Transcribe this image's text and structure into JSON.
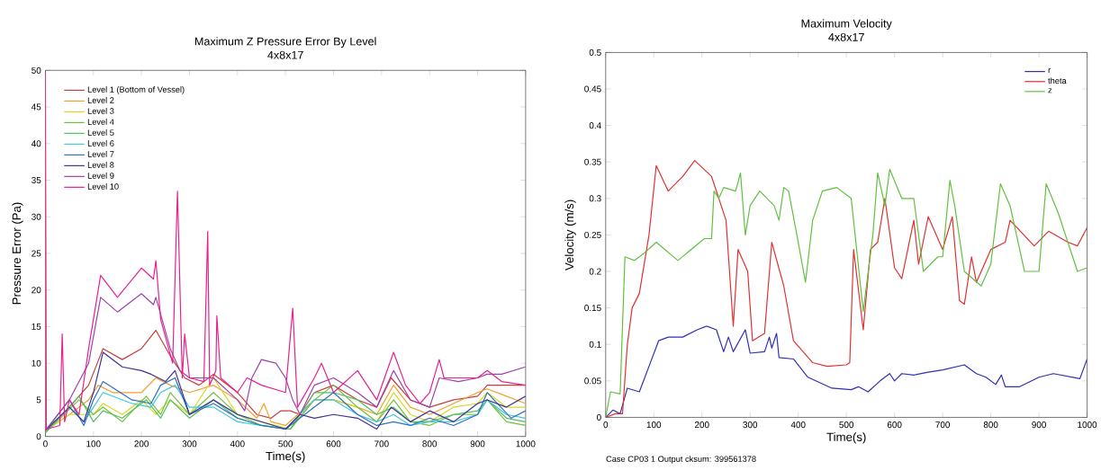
{
  "chart_data": [
    {
      "type": "line",
      "title": "Maximum Z Pressure Error By Level",
      "subtitle": "4x8x17",
      "xlabel": "Time(s)",
      "ylabel": "Pressure Error (Pa)",
      "xlim": [
        0,
        1000
      ],
      "ylim": [
        0,
        50
      ],
      "xticks": [
        0,
        100,
        200,
        300,
        400,
        500,
        600,
        700,
        800,
        900,
        1000
      ],
      "yticks": [
        0,
        5,
        10,
        15,
        20,
        25,
        30,
        35,
        40,
        45,
        50
      ],
      "legend": "top left",
      "series": [
        {
          "name": "Level 1 (Bottom of Vessel)",
          "color": "#c83c3c",
          "x": [
            0,
            50,
            90,
            120,
            160,
            200,
            230,
            260,
            290,
            320,
            350,
            400,
            440,
            470,
            490,
            510,
            530,
            560,
            600,
            650,
            690,
            720,
            760,
            800,
            850,
            900,
            920,
            960,
            1000
          ],
          "values": [
            0.8,
            4,
            7,
            12,
            10.5,
            12,
            14.5,
            11,
            8,
            7,
            8.5,
            6,
            3,
            2.5,
            3.5,
            3.5,
            3,
            6,
            7,
            5,
            4,
            8,
            5,
            4,
            5,
            5.5,
            7,
            7,
            7
          ]
        },
        {
          "name": "Level 2",
          "color": "#f0a030",
          "x": [
            0,
            50,
            90,
            110,
            140,
            200,
            230,
            260,
            300,
            350,
            400,
            440,
            455,
            470,
            500,
            560,
            600,
            650,
            690,
            725,
            760,
            800,
            850,
            900,
            920,
            960,
            1000
          ],
          "values": [
            0.8,
            3,
            5,
            7,
            6,
            6,
            8,
            7,
            6,
            7,
            5,
            2.5,
            4.5,
            2,
            1.5,
            5,
            5,
            4,
            3,
            7,
            4,
            3,
            4.5,
            6,
            6.5,
            5.5,
            4.5
          ]
        },
        {
          "name": "Level 3",
          "color": "#d8d820",
          "x": [
            0,
            50,
            100,
            120,
            160,
            200,
            230,
            260,
            300,
            350,
            400,
            450,
            510,
            560,
            600,
            650,
            690,
            725,
            760,
            800,
            850,
            900,
            920,
            960,
            1000
          ],
          "values": [
            0.8,
            3,
            3,
            4.5,
            3,
            5,
            3,
            5,
            3,
            8,
            3,
            2,
            1,
            5,
            5,
            4,
            2,
            6,
            3,
            2,
            4,
            4.5,
            6,
            4,
            4
          ]
        },
        {
          "name": "Level 4",
          "color": "#70c040",
          "x": [
            0,
            70,
            100,
            120,
            160,
            210,
            240,
            260,
            300,
            350,
            400,
            450,
            510,
            560,
            600,
            650,
            690,
            725,
            760,
            800,
            850,
            900,
            920,
            960,
            1000
          ],
          "values": [
            0.5,
            5,
            3,
            4,
            2,
            5.5,
            3,
            6,
            3,
            6,
            3,
            1.5,
            1,
            5,
            7,
            4,
            2,
            5,
            2,
            1.5,
            3,
            3,
            5,
            2,
            1.5
          ]
        },
        {
          "name": "Level 5",
          "color": "#50c060",
          "x": [
            0,
            70,
            100,
            120,
            160,
            210,
            240,
            260,
            300,
            350,
            400,
            450,
            510,
            560,
            600,
            650,
            690,
            725,
            760,
            800,
            850,
            900,
            920,
            960,
            1000
          ],
          "values": [
            0.5,
            5.5,
            2,
            3.5,
            2.5,
            5,
            2.5,
            5,
            2.5,
            5,
            2.5,
            1.5,
            1,
            6,
            6,
            5,
            3,
            4,
            2,
            2,
            3,
            3.5,
            5,
            2.5,
            2
          ]
        },
        {
          "name": "Level 6",
          "color": "#40c8e0",
          "x": [
            0,
            50,
            80,
            100,
            120,
            180,
            220,
            240,
            270,
            300,
            350,
            400,
            450,
            500,
            560,
            600,
            650,
            690,
            725,
            760,
            800,
            850,
            900,
            920,
            960,
            1000
          ],
          "values": [
            0.8,
            4,
            2,
            4,
            6,
            4.5,
            4,
            6,
            7,
            4,
            4,
            2,
            1.5,
            1,
            5,
            5,
            3,
            2,
            3,
            1.5,
            2,
            2,
            3,
            5,
            3,
            2.5
          ]
        },
        {
          "name": "Level 7",
          "color": "#3070c0",
          "x": [
            0,
            50,
            80,
            100,
            120,
            180,
            220,
            240,
            270,
            300,
            350,
            400,
            450,
            500,
            560,
            600,
            650,
            690,
            725,
            760,
            800,
            850,
            900,
            920,
            970,
            1000
          ],
          "values": [
            0.8,
            5,
            1.5,
            5,
            7.5,
            5,
            4.5,
            7,
            8,
            3,
            4.5,
            2.5,
            1.5,
            1,
            4,
            6,
            3,
            1.5,
            2,
            1.5,
            2.5,
            1.5,
            3,
            6,
            2.5,
            3.5
          ]
        },
        {
          "name": "Level 8",
          "color": "#403090",
          "x": [
            0,
            50,
            80,
            100,
            120,
            160,
            200,
            220,
            250,
            270,
            300,
            350,
            400,
            450,
            500,
            530,
            560,
            600,
            650,
            690,
            720,
            760,
            800,
            850,
            900,
            920,
            960,
            1000
          ],
          "values": [
            0.8,
            4,
            2,
            6,
            11.5,
            9.5,
            9,
            8.5,
            7.5,
            9,
            3,
            5,
            3,
            2,
            1,
            3,
            2.5,
            3,
            2.5,
            1,
            4,
            2,
            3.5,
            2,
            4.5,
            5,
            4,
            5.5
          ]
        },
        {
          "name": "Level 9",
          "color": "#a040b0",
          "x": [
            0,
            50,
            90,
            115,
            150,
            200,
            225,
            230,
            260,
            280,
            300,
            350,
            400,
            415,
            430,
            450,
            480,
            500,
            515,
            530,
            560,
            600,
            650,
            690,
            725,
            760,
            800,
            820,
            860,
            900,
            920,
            950,
            1000
          ],
          "values": [
            0.8,
            5,
            10,
            19,
            17,
            19.5,
            18,
            19,
            12,
            9,
            8,
            8,
            5,
            3.5,
            8,
            10.5,
            10,
            8,
            5,
            3,
            7,
            8,
            6,
            4,
            9,
            5,
            4,
            8,
            7.5,
            8,
            8.5,
            8.5,
            9.5
          ]
        },
        {
          "name": "Level 10",
          "color": "#e8208c",
          "x": [
            0,
            2,
            30,
            35,
            40,
            50,
            70,
            90,
            115,
            150,
            200,
            225,
            230,
            240,
            265,
            275,
            285,
            290,
            300,
            330,
            338,
            342,
            355,
            357,
            365,
            400,
            420,
            450,
            500,
            515,
            525,
            560,
            575,
            600,
            650,
            690,
            725,
            750,
            780,
            800,
            820,
            830,
            900,
            920,
            950,
            1000
          ],
          "values": [
            50,
            1,
            1.5,
            14,
            2,
            5,
            3,
            12,
            22,
            19,
            23,
            21.5,
            24,
            16,
            10,
            33.5,
            8,
            14,
            8,
            7.5,
            28,
            7,
            9,
            16.5,
            8,
            6,
            8,
            7,
            6,
            17.5,
            4,
            8,
            10,
            6,
            9,
            5,
            11.5,
            7,
            4.5,
            6,
            10.5,
            8,
            8,
            9,
            7.5,
            7
          ]
        }
      ]
    },
    {
      "type": "line",
      "title": "Maximum Velocity",
      "subtitle": "4x8x17",
      "xlabel": "Time(s)",
      "ylabel": "Velocity (m/s)",
      "xlim": [
        0,
        1000
      ],
      "ylim": [
        0,
        0.5
      ],
      "xticks": [
        0,
        100,
        200,
        300,
        400,
        500,
        600,
        700,
        800,
        900,
        1000
      ],
      "yticks": [
        0,
        0.05,
        0.1,
        0.15,
        0.2,
        0.25,
        0.3,
        0.35,
        0.4,
        0.45,
        0.5
      ],
      "legend": "top right",
      "annotations": [
        "Case CP03 1 Output cksum: 399561378"
      ],
      "series": [
        {
          "name": "r",
          "color": "#3030b0",
          "x": [
            0,
            15,
            30,
            45,
            70,
            90,
            110,
            130,
            160,
            190,
            210,
            230,
            245,
            255,
            265,
            290,
            300,
            330,
            340,
            345,
            355,
            360,
            390,
            420,
            470,
            510,
            525,
            545,
            570,
            590,
            600,
            615,
            640,
            670,
            700,
            745,
            770,
            790,
            810,
            822,
            830,
            860,
            900,
            930,
            985,
            1000
          ],
          "values": [
            0,
            0.01,
            0.005,
            0.04,
            0.035,
            0.07,
            0.105,
            0.11,
            0.11,
            0.12,
            0.125,
            0.12,
            0.09,
            0.11,
            0.09,
            0.12,
            0.088,
            0.09,
            0.11,
            0.095,
            0.115,
            0.082,
            0.08,
            0.055,
            0.04,
            0.038,
            0.042,
            0.035,
            0.05,
            0.06,
            0.05,
            0.06,
            0.058,
            0.062,
            0.065,
            0.072,
            0.06,
            0.055,
            0.045,
            0.058,
            0.042,
            0.042,
            0.055,
            0.06,
            0.053,
            0.08
          ]
        },
        {
          "name": "theta",
          "color": "#e03030",
          "x": [
            0,
            20,
            35,
            45,
            55,
            70,
            90,
            105,
            130,
            160,
            185,
            220,
            250,
            265,
            275,
            295,
            305,
            330,
            345,
            370,
            390,
            430,
            460,
            500,
            507,
            515,
            535,
            550,
            565,
            580,
            600,
            615,
            640,
            650,
            670,
            700,
            720,
            735,
            745,
            760,
            770,
            800,
            830,
            840,
            890,
            920,
            960,
            980,
            1000
          ],
          "values": [
            0,
            0.005,
            0.005,
            0.1,
            0.15,
            0.17,
            0.25,
            0.345,
            0.31,
            0.33,
            0.352,
            0.33,
            0.27,
            0.125,
            0.23,
            0.2,
            0.105,
            0.115,
            0.24,
            0.18,
            0.105,
            0.075,
            0.07,
            0.072,
            0.075,
            0.23,
            0.12,
            0.23,
            0.24,
            0.3,
            0.205,
            0.19,
            0.27,
            0.21,
            0.275,
            0.23,
            0.275,
            0.16,
            0.155,
            0.22,
            0.185,
            0.23,
            0.24,
            0.27,
            0.235,
            0.255,
            0.24,
            0.235,
            0.26
          ]
        },
        {
          "name": "z",
          "color": "#60c040",
          "x": [
            0,
            10,
            30,
            40,
            60,
            80,
            105,
            150,
            205,
            220,
            225,
            235,
            245,
            270,
            280,
            290,
            300,
            320,
            350,
            360,
            370,
            380,
            400,
            415,
            430,
            450,
            480,
            510,
            535,
            555,
            565,
            580,
            590,
            615,
            640,
            660,
            690,
            700,
            715,
            725,
            745,
            780,
            800,
            820,
            840,
            870,
            900,
            915,
            940,
            980,
            1000
          ],
          "values": [
            0,
            0.035,
            0.032,
            0.22,
            0.215,
            0.225,
            0.24,
            0.215,
            0.245,
            0.245,
            0.31,
            0.3,
            0.315,
            0.31,
            0.335,
            0.25,
            0.29,
            0.31,
            0.29,
            0.27,
            0.315,
            0.31,
            0.24,
            0.185,
            0.27,
            0.31,
            0.315,
            0.3,
            0.145,
            0.25,
            0.335,
            0.29,
            0.34,
            0.3,
            0.3,
            0.2,
            0.22,
            0.22,
            0.325,
            0.29,
            0.2,
            0.18,
            0.21,
            0.32,
            0.29,
            0.2,
            0.2,
            0.32,
            0.28,
            0.2,
            0.205
          ]
        }
      ]
    }
  ]
}
